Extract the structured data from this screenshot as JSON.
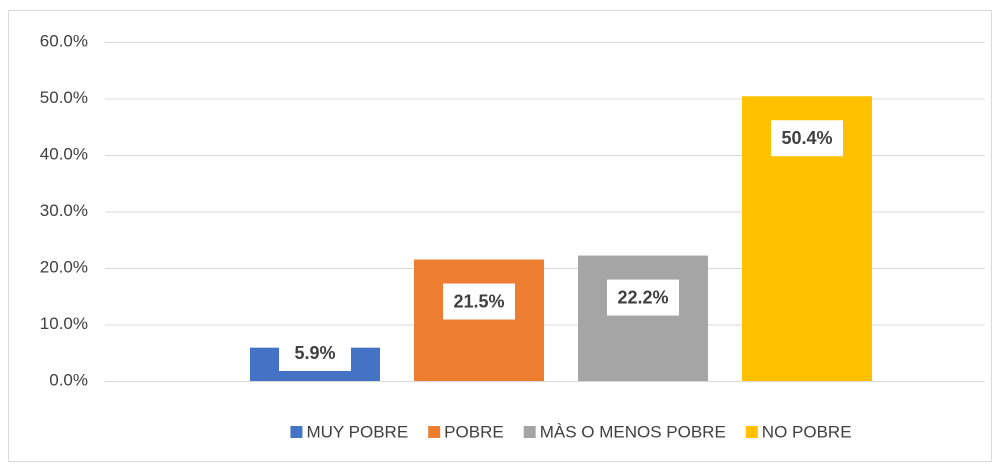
{
  "chart_data": {
    "type": "bar",
    "categories": [
      null
    ],
    "series": [
      {
        "name": "MUY POBRE",
        "color": "#4472c4",
        "values": [
          5.9
        ],
        "value_labels": [
          "5.9%"
        ]
      },
      {
        "name": "POBRE",
        "color": "#ed7d31",
        "values": [
          21.5
        ],
        "value_labels": [
          "21.5%"
        ]
      },
      {
        "name": "MÀS O MENOS POBRE",
        "color": "#a5a5a5",
        "values": [
          22.2
        ],
        "value_labels": [
          "22.2%"
        ]
      },
      {
        "name": "NO POBRE",
        "color": "#ffc000",
        "values": [
          50.4
        ],
        "value_labels": [
          "50.4%"
        ]
      }
    ],
    "ylim": [
      0,
      60
    ],
    "yticks": [
      {
        "value": 0,
        "label": "0.0%"
      },
      {
        "value": 10,
        "label": "10.0%"
      },
      {
        "value": 20,
        "label": "20.0%"
      },
      {
        "value": 30,
        "label": "30.0%"
      },
      {
        "value": 40,
        "label": "40.0%"
      },
      {
        "value": 50,
        "label": "50.0%"
      },
      {
        "value": 60,
        "label": "60.0%"
      }
    ],
    "grid": true,
    "legend": "bottom"
  }
}
